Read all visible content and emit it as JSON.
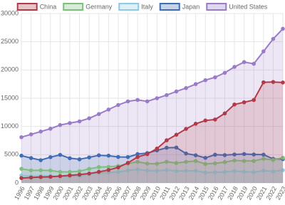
{
  "chart_data": {
    "type": "line",
    "categories": [
      "1996",
      "1997",
      "1998",
      "1999",
      "2000",
      "2001",
      "2002",
      "2003",
      "2004",
      "2005",
      "2006",
      "2007",
      "2008",
      "2009",
      "2010",
      "2011",
      "2012",
      "2013",
      "2014",
      "2015",
      "2016",
      "2017",
      "2018",
      "2019",
      "2020",
      "2021",
      "2022",
      "2023"
    ],
    "series": [
      {
        "name": "China",
        "color": "#b23a48",
        "values": [
          860,
          960,
          1030,
          1090,
          1210,
          1340,
          1470,
          1660,
          1960,
          2290,
          2750,
          3550,
          4590,
          5100,
          6090,
          7550,
          8530,
          9570,
          10480,
          11060,
          11230,
          12310,
          13890,
          14280,
          14690,
          17820,
          17880,
          17790
        ]
      },
      {
        "name": "Germany",
        "color": "#7dbf7d",
        "values": [
          2500,
          2220,
          2240,
          2200,
          1950,
          1950,
          2080,
          2500,
          2810,
          2850,
          3000,
          3430,
          3750,
          3420,
          3400,
          3750,
          3530,
          3730,
          3890,
          3360,
          3470,
          3690,
          3980,
          3890,
          3890,
          4280,
          4080,
          4460
        ]
      },
      {
        "name": "Italy",
        "color": "#8ec9e6",
        "values": [
          1310,
          1240,
          1270,
          1250,
          1140,
          1160,
          1270,
          1570,
          1800,
          1850,
          1940,
          2200,
          2390,
          2190,
          2130,
          2290,
          2090,
          2140,
          2160,
          1840,
          1880,
          1960,
          2090,
          2010,
          1900,
          2180,
          2050,
          2250
        ]
      },
      {
        "name": "Japan",
        "color": "#3f6db3",
        "values": [
          4830,
          4410,
          4030,
          4560,
          4970,
          4370,
          4180,
          4520,
          4890,
          4830,
          4600,
          4580,
          5110,
          5290,
          5760,
          6230,
          6270,
          5210,
          4900,
          4440,
          5000,
          4930,
          5040,
          5120,
          5040,
          5010,
          4260,
          4210
        ]
      },
      {
        "name": "United States",
        "color": "#9a7bc7",
        "values": [
          8100,
          8600,
          9100,
          9600,
          10250,
          10600,
          10900,
          11450,
          12200,
          13000,
          13800,
          14450,
          14700,
          14450,
          15000,
          15550,
          16200,
          16800,
          17500,
          18200,
          18700,
          19500,
          20550,
          21400,
          21100,
          23300,
          25500,
          27300
        ]
      }
    ],
    "ylim": [
      0,
      30000
    ],
    "yticks": [
      0,
      5000,
      10000,
      15000,
      20000,
      25000,
      30000
    ],
    "grid": true,
    "fill": true,
    "legend": "top"
  }
}
